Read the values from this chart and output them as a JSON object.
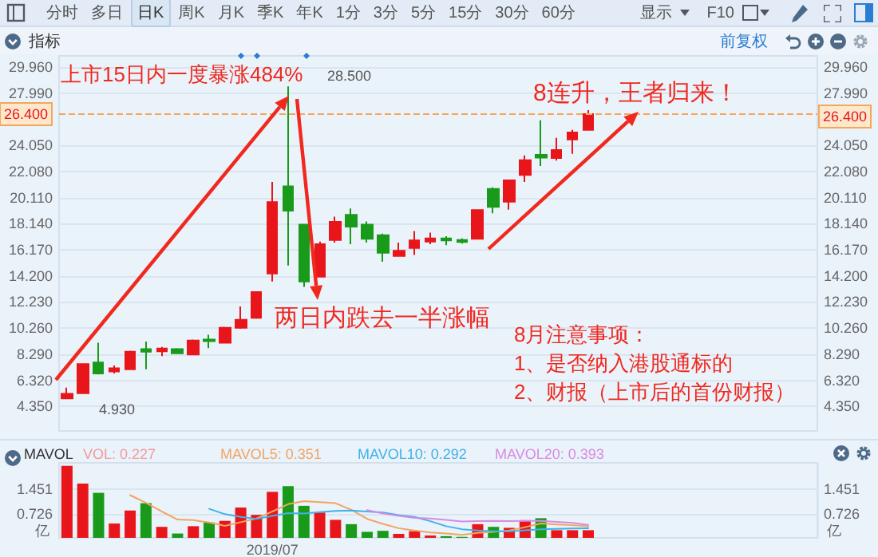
{
  "chart_data": [
    {
      "type": "other",
      "annotations": [
        "分时",
        "多日",
        "日K",
        "周K",
        "月K",
        "季K",
        "年K",
        "1分",
        "3分",
        "5分",
        "15分",
        "30分",
        "60分",
        "显示",
        "F10",
        "指标",
        "前复权"
      ]
    },
    {
      "type": "candlestick",
      "categories": [
        null,
        null,
        null,
        null,
        null,
        null,
        null,
        null,
        null,
        null,
        null,
        null,
        null,
        null,
        null,
        null,
        null,
        null,
        null,
        null,
        null,
        null,
        null,
        null,
        null,
        null,
        null,
        null,
        null,
        null,
        null,
        null,
        null,
        null,
        null,
        null,
        null,
        null,
        null,
        null,
        null,
        null,
        null,
        null,
        null,
        null,
        null,
        null
      ],
      "ohlc": [
        [
          4.95,
          5.76,
          4.93,
          5.3
        ],
        [
          5.34,
          7.6,
          5.3,
          7.55
        ],
        [
          7.67,
          9.16,
          6.76,
          6.83
        ],
        [
          6.99,
          7.43,
          6.83,
          7.23
        ],
        [
          7.15,
          8.55,
          7.1,
          8.47
        ],
        [
          8.67,
          9.24,
          7.15,
          8.47
        ],
        [
          8.51,
          8.84,
          8.15,
          8.71
        ],
        [
          8.67,
          8.75,
          8.3,
          8.35
        ],
        [
          8.27,
          9.4,
          8.2,
          9.32
        ],
        [
          9.4,
          9.76,
          8.75,
          9.28
        ],
        [
          9.16,
          10.36,
          9.1,
          10.28
        ],
        [
          10.28,
          11.89,
          10.2,
          10.88
        ],
        [
          11.04,
          13.0,
          10.96,
          12.97
        ],
        [
          14.38,
          21.29,
          13.78,
          19.76
        ],
        [
          20.96,
          28.5,
          14.98,
          19.12
        ],
        [
          18.07,
          18.1,
          13.37,
          13.78
        ],
        [
          14.14,
          16.79,
          14.1,
          16.59
        ],
        [
          16.91,
          18.67,
          16.71,
          18.27
        ],
        [
          18.8,
          19.28,
          16.59,
          17.91
        ],
        [
          18.07,
          18.31,
          16.71,
          16.99
        ],
        [
          17.27,
          17.39,
          15.26,
          15.94
        ],
        [
          15.7,
          16.71,
          15.66,
          16.1
        ],
        [
          16.31,
          17.59,
          15.78,
          16.87
        ],
        [
          16.79,
          17.47,
          16.59,
          17.03
        ],
        [
          17.03,
          17.19,
          16.51,
          16.87
        ],
        [
          16.91,
          17.03,
          16.63,
          16.75
        ],
        [
          16.99,
          19.2,
          16.95,
          19.16
        ],
        [
          20.76,
          20.88,
          18.92,
          19.4
        ],
        [
          19.8,
          21.45,
          19.2,
          21.41
        ],
        [
          21.81,
          23.29,
          21.29,
          22.93
        ],
        [
          23.33,
          25.94,
          22.49,
          23.13
        ],
        [
          23.09,
          24.62,
          22.89,
          23.69
        ],
        [
          24.5,
          25.22,
          23.41,
          25.02
        ],
        [
          25.22,
          26.71,
          25.2,
          26.4
        ],
        null,
        null,
        null,
        null,
        null,
        null,
        null,
        null,
        null,
        null,
        null,
        null,
        null,
        null
      ],
      "colors": [
        "#e8161b",
        "#e8161b",
        "#1a9a1a",
        "#e8161b",
        "#e8161b",
        "#1a9a1a",
        "#e8161b",
        "#1a9a1a",
        "#e8161b",
        "#1a9a1a",
        "#e8161b",
        "#e8161b",
        "#e8161b",
        "#e8161b",
        "#1a9a1a",
        "#1a9a1a",
        "#e8161b",
        "#e8161b",
        "#1a9a1a",
        "#1a9a1a",
        "#1a9a1a",
        "#e8161b",
        "#e8161b",
        "#e8161b",
        "#1a9a1a",
        "#1a9a1a",
        "#e8161b",
        "#1a9a1a",
        "#e8161b",
        "#e8161b",
        "#1a9a1a",
        "#e8161b",
        "#e8161b",
        "#e8161b",
        null,
        null,
        null,
        null,
        null,
        null,
        null,
        null,
        null,
        null,
        null,
        null,
        null,
        null
      ],
      "ylim": [
        2.5,
        30.8
      ],
      "yticks": [
        {
          "value": 4.35,
          "label": "4.350"
        },
        {
          "value": 6.32,
          "label": "6.320"
        },
        {
          "value": 8.29,
          "label": "8.290"
        },
        {
          "value": 10.26,
          "label": "10.260"
        },
        {
          "value": 12.23,
          "label": "12.230"
        },
        {
          "value": 14.2,
          "label": "14.200"
        },
        {
          "value": 16.17,
          "label": "16.170"
        },
        {
          "value": 18.14,
          "label": "18.140"
        },
        {
          "value": 20.11,
          "label": "20.110"
        },
        {
          "value": 22.08,
          "label": "22.080"
        },
        {
          "value": 24.05,
          "label": "24.050"
        },
        {
          "value": 27.99,
          "label": "27.990"
        },
        {
          "value": 29.96,
          "label": "29.960"
        }
      ],
      "y2lim": [
        2.5,
        30.8
      ],
      "y2ticks": [
        {
          "value": 4.35,
          "label": "4.350"
        },
        {
          "value": 6.32,
          "label": "6.320"
        },
        {
          "value": 8.29,
          "label": "8.290"
        },
        {
          "value": 10.26,
          "label": "10.260"
        },
        {
          "value": 12.23,
          "label": "12.230"
        },
        {
          "value": 14.2,
          "label": "14.200"
        },
        {
          "value": 16.17,
          "label": "16.170"
        },
        {
          "value": 18.14,
          "label": "18.140"
        },
        {
          "value": 20.11,
          "label": "20.110"
        },
        {
          "value": 22.08,
          "label": "22.080"
        },
        {
          "value": 24.05,
          "label": "24.050"
        },
        {
          "value": 27.99,
          "label": "27.990"
        },
        {
          "value": 29.96,
          "label": "29.960"
        }
      ],
      "tick_labels": "y",
      "grid": true,
      "ref_lines": [
        {
          "axis": "y",
          "value": 26.4,
          "label": "26.400",
          "color": "#f5a65b",
          "line_style": "dashed"
        }
      ],
      "annotations": [
        "上市15日内一度暴涨484%",
        "两日内跌去一半涨幅",
        "8连升，王者归来！",
        "8月注意事项：",
        "1、是否纳入港股通标的",
        "2、财报（上市后的首份财报）",
        "28.500",
        "4.930"
      ]
    },
    {
      "type": "bar",
      "title": "MAVOL",
      "categories": [
        null,
        null,
        null,
        null,
        null,
        null,
        null,
        null,
        null,
        null,
        null,
        null,
        null,
        "2019/07",
        null,
        null,
        null,
        null,
        null,
        null,
        null,
        null,
        null,
        null,
        null,
        null,
        null,
        null,
        null,
        null,
        null,
        null,
        null,
        null,
        null,
        null,
        null,
        null,
        null,
        null,
        null,
        null,
        null,
        null,
        null,
        null,
        null,
        null
      ],
      "series": [
        {
          "name": "VOL: 0.227",
          "type": "bar",
          "color": "#f39a9a",
          "values": [
            2.16,
            1.63,
            1.35,
            0.43,
            0.82,
            1.04,
            0.33,
            0.13,
            0.35,
            0.46,
            0.51,
            0.91,
            0.69,
            1.38,
            1.55,
            0.96,
            0.76,
            0.54,
            0.41,
            0.18,
            0.21,
            0.12,
            0.2,
            0.07,
            0.05,
            0.03,
            0.41,
            0.33,
            0.3,
            0.53,
            0.59,
            0.23,
            0.23,
            0.23,
            null,
            null,
            null,
            null,
            null,
            null,
            null,
            null,
            null,
            null,
            null,
            null,
            null,
            null
          ],
          "colors": [
            "#e8161b",
            "#e8161b",
            "#1a9a1a",
            "#e8161b",
            "#e8161b",
            "#1a9a1a",
            "#e8161b",
            "#1a9a1a",
            "#e8161b",
            "#1a9a1a",
            "#e8161b",
            "#e8161b",
            "#e8161b",
            "#e8161b",
            "#1a9a1a",
            "#1a9a1a",
            "#e8161b",
            "#e8161b",
            "#1a9a1a",
            "#1a9a1a",
            "#1a9a1a",
            "#e8161b",
            "#e8161b",
            "#e8161b",
            "#1a9a1a",
            "#1a9a1a",
            "#e8161b",
            "#1a9a1a",
            "#e8161b",
            "#e8161b",
            "#1a9a1a",
            "#e8161b",
            "#e8161b",
            "#e8161b",
            null,
            null,
            null,
            null,
            null,
            null,
            null,
            null,
            null,
            null,
            null,
            null,
            null,
            null
          ]
        },
        {
          "name": "MAVOL5: 0.351",
          "type": "line",
          "color": "#f2a462",
          "values": [
            null,
            null,
            null,
            null,
            1.28,
            1.05,
            0.79,
            0.55,
            0.53,
            0.46,
            0.36,
            0.47,
            0.58,
            0.79,
            1.01,
            1.1,
            1.07,
            1.04,
            0.84,
            0.57,
            0.42,
            0.29,
            0.22,
            0.16,
            0.13,
            0.09,
            0.15,
            0.18,
            0.22,
            0.32,
            0.43,
            0.4,
            0.38,
            0.35,
            null,
            null,
            null,
            null,
            null,
            null,
            null,
            null,
            null,
            null,
            null,
            null,
            null,
            null
          ]
        },
        {
          "name": "MAVOL10: 0.292",
          "type": "line",
          "color": "#3fb2ea",
          "values": [
            null,
            null,
            null,
            null,
            null,
            null,
            null,
            null,
            null,
            0.87,
            0.71,
            0.63,
            0.57,
            0.66,
            0.74,
            0.73,
            0.77,
            0.81,
            0.82,
            0.79,
            0.76,
            0.68,
            0.63,
            0.5,
            0.35,
            0.26,
            0.22,
            0.2,
            0.19,
            0.23,
            0.26,
            0.27,
            0.28,
            0.29,
            null,
            null,
            null,
            null,
            null,
            null,
            null,
            null,
            null,
            null,
            null,
            null,
            null,
            null
          ]
        },
        {
          "name": "MAVOL20: 0.393",
          "type": "line",
          "color": "#d88be2",
          "values": [
            null,
            null,
            null,
            null,
            null,
            null,
            null,
            null,
            null,
            null,
            null,
            null,
            null,
            null,
            null,
            null,
            null,
            null,
            null,
            0.83,
            0.73,
            0.66,
            0.6,
            0.58,
            0.54,
            0.49,
            0.5,
            0.51,
            0.5,
            0.51,
            0.51,
            0.48,
            0.45,
            0.39,
            null,
            null,
            null,
            null,
            null,
            null,
            null,
            null,
            null,
            null,
            null,
            null,
            null,
            null
          ]
        }
      ],
      "ylim": [
        0,
        2.25
      ],
      "yticks": [
        0.726,
        1.451
      ],
      "y2lim": [
        0,
        2.25
      ],
      "y2ticks": [
        0.726,
        1.451
      ],
      "ylabel": "亿",
      "y2label": "亿",
      "marker": "none",
      "line_style": "solid",
      "grid": true
    }
  ]
}
